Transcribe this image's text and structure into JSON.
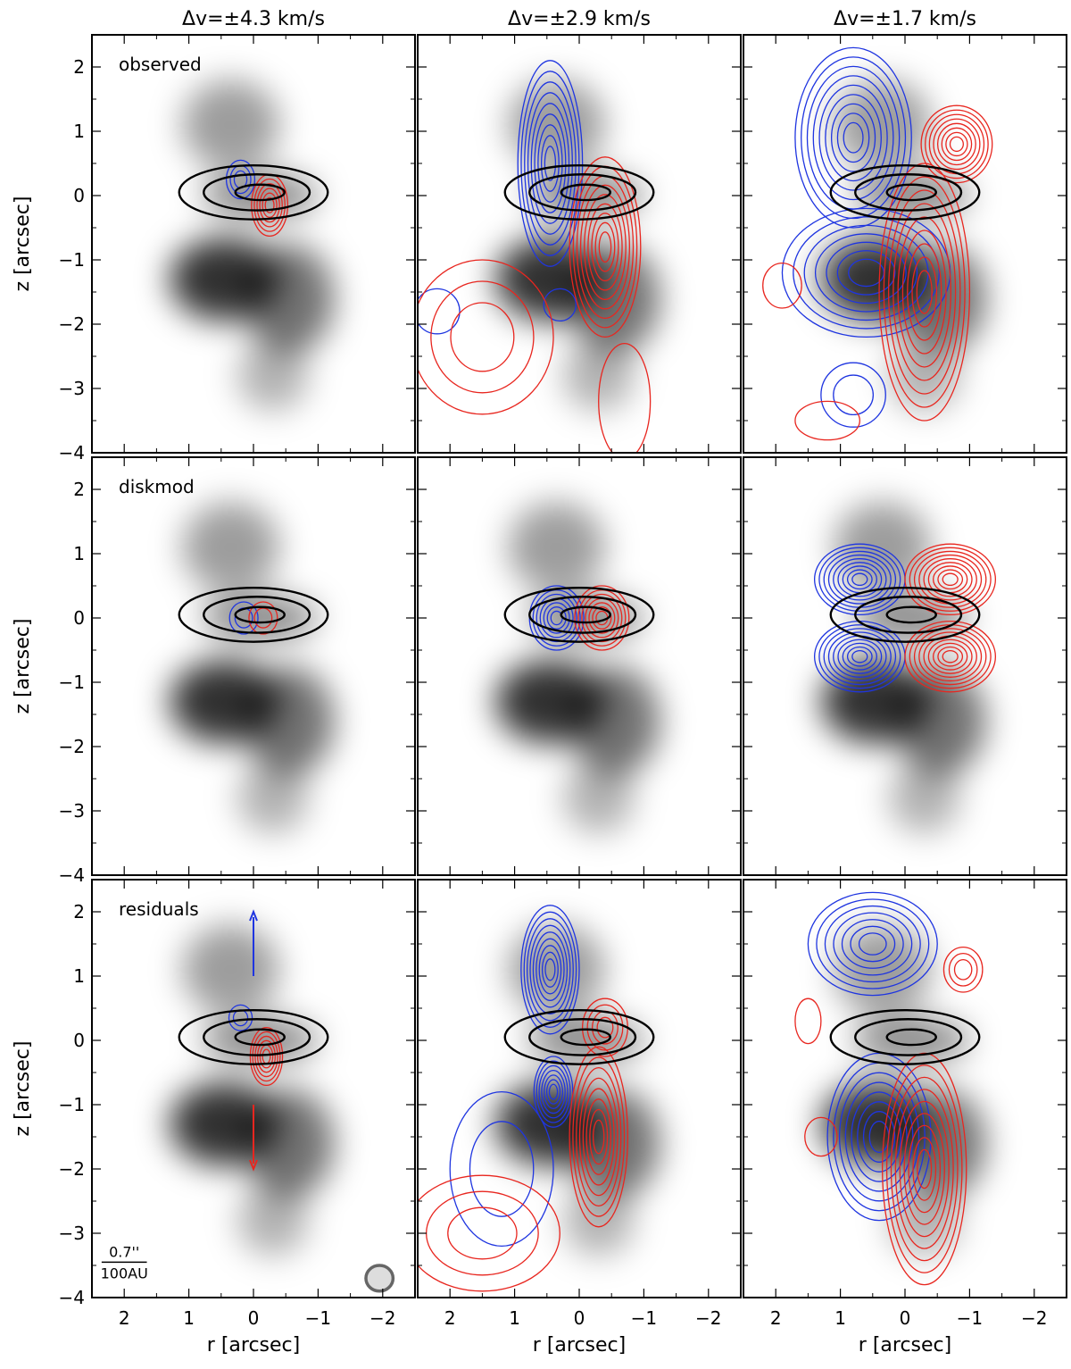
{
  "colors": {
    "blue": "#1f35e0",
    "red": "#e8261f",
    "black": "#000000",
    "beam": "#666666"
  },
  "chart_data": {
    "type": "contour-grid",
    "columns": [
      "Δv=±4.3 km/s",
      "Δv=±2.9 km/s",
      "Δv=±1.7 km/s"
    ],
    "rows": [
      "observed",
      "diskmod",
      "residuals"
    ],
    "xlabel": "r [arcsec]",
    "ylabel": "z [arcsec]",
    "xlim": [
      2.5,
      -2.5
    ],
    "ylim": [
      -4,
      2.5
    ],
    "xticks": [
      2,
      1,
      0,
      -1,
      -2
    ],
    "yticks": [
      2,
      1,
      0,
      -1,
      -2,
      -3,
      -4
    ],
    "xtick_labels": [
      "2",
      "1",
      "0",
      "−1",
      "−2"
    ],
    "ytick_labels": [
      "2",
      "1",
      "0",
      "−1",
      "−2",
      "−3",
      "−4"
    ],
    "background": {
      "blobs": [
        {
          "x": 0.35,
          "y": 1.1,
          "sx": 0.75,
          "sy": 0.7,
          "a": 0.45
        },
        {
          "x": -0.1,
          "y": 0.0,
          "sx": 0.9,
          "sy": 0.35,
          "a": 0.55
        },
        {
          "x": 0.45,
          "y": -1.3,
          "sx": 0.85,
          "sy": 0.65,
          "a": 0.95
        },
        {
          "x": -0.55,
          "y": -1.6,
          "sx": 0.7,
          "sy": 0.85,
          "a": 0.65
        },
        {
          "x": -0.3,
          "y": -2.8,
          "sx": 0.55,
          "sy": 0.55,
          "a": 0.35
        }
      ]
    },
    "continuum_contours": [
      {
        "cx": 0.0,
        "cy": 0.05,
        "rx": 1.15,
        "ry": 0.42
      },
      {
        "cx": -0.05,
        "cy": 0.05,
        "rx": 0.82,
        "ry": 0.28
      },
      {
        "cx": -0.1,
        "cy": 0.05,
        "rx": 0.38,
        "ry": 0.12
      }
    ],
    "line_contours": {
      "observed": [
        {
          "blue": [
            {
              "cx": 0.2,
              "cy": 0.25,
              "rx": 0.22,
              "ry": 0.3,
              "n": 3
            }
          ],
          "red": [
            {
              "cx": -0.25,
              "cy": -0.15,
              "rx": 0.28,
              "ry": 0.48,
              "n": 6
            }
          ]
        },
        {
          "blue": [
            {
              "cx": 0.45,
              "cy": 0.5,
              "rx": 0.5,
              "ry": 1.6,
              "n": 9
            },
            {
              "cx": 0.3,
              "cy": -1.7,
              "rx": 0.25,
              "ry": 0.25,
              "n": 1
            },
            {
              "cx": 2.2,
              "cy": -1.8,
              "rx": 0.35,
              "ry": 0.35,
              "n": 1
            }
          ],
          "red": [
            {
              "cx": -0.4,
              "cy": -0.8,
              "rx": 0.55,
              "ry": 1.4,
              "n": 9
            },
            {
              "cx": 1.5,
              "cy": -2.2,
              "rx": 1.1,
              "ry": 1.2,
              "n": 3
            },
            {
              "cx": -0.7,
              "cy": -3.2,
              "rx": 0.4,
              "ry": 0.9,
              "n": 1
            }
          ]
        },
        {
          "blue": [
            {
              "cx": 0.8,
              "cy": 0.9,
              "rx": 0.9,
              "ry": 1.4,
              "n": 9
            },
            {
              "cx": 0.6,
              "cy": -1.2,
              "rx": 1.3,
              "ry": 1.0,
              "n": 7
            },
            {
              "cx": 0.8,
              "cy": -3.1,
              "rx": 0.5,
              "ry": 0.5,
              "n": 2
            }
          ],
          "red": [
            {
              "cx": -0.8,
              "cy": 0.8,
              "rx": 0.55,
              "ry": 0.6,
              "n": 8
            },
            {
              "cx": -0.3,
              "cy": -1.5,
              "rx": 0.7,
              "ry": 2.0,
              "n": 9
            },
            {
              "cx": 1.9,
              "cy": -1.4,
              "rx": 0.3,
              "ry": 0.35,
              "n": 1
            },
            {
              "cx": 1.2,
              "cy": -3.5,
              "rx": 0.5,
              "ry": 0.3,
              "n": 1
            }
          ]
        }
      ],
      "diskmod": [
        {
          "blue": [
            {
              "cx": 0.15,
              "cy": 0.0,
              "rx": 0.22,
              "ry": 0.25,
              "n": 2
            }
          ],
          "red": [
            {
              "cx": -0.15,
              "cy": 0.0,
              "rx": 0.22,
              "ry": 0.25,
              "n": 2
            }
          ]
        },
        {
          "blue": [
            {
              "cx": 0.35,
              "cy": 0.0,
              "rx": 0.42,
              "ry": 0.5,
              "n": 7
            }
          ],
          "red": [
            {
              "cx": -0.35,
              "cy": 0.0,
              "rx": 0.42,
              "ry": 0.5,
              "n": 7
            }
          ]
        },
        {
          "blue": [
            {
              "cx": 0.7,
              "cy": 0.6,
              "rx": 0.7,
              "ry": 0.55,
              "n": 9
            },
            {
              "cx": 0.7,
              "cy": -0.6,
              "rx": 0.7,
              "ry": 0.55,
              "n": 9
            }
          ],
          "red": [
            {
              "cx": -0.7,
              "cy": 0.6,
              "rx": 0.7,
              "ry": 0.55,
              "n": 9
            },
            {
              "cx": -0.7,
              "cy": -0.6,
              "rx": 0.7,
              "ry": 0.55,
              "n": 9
            }
          ]
        }
      ],
      "residuals": [
        {
          "blue": [
            {
              "cx": 0.2,
              "cy": 0.35,
              "rx": 0.18,
              "ry": 0.2,
              "n": 2
            }
          ],
          "red": [
            {
              "cx": -0.2,
              "cy": -0.25,
              "rx": 0.25,
              "ry": 0.45,
              "n": 6
            }
          ]
        },
        {
          "blue": [
            {
              "cx": 0.45,
              "cy": 1.1,
              "rx": 0.45,
              "ry": 1.0,
              "n": 9
            },
            {
              "cx": 0.4,
              "cy": -0.8,
              "rx": 0.3,
              "ry": 0.55,
              "n": 7
            },
            {
              "cx": 1.2,
              "cy": -2.0,
              "rx": 0.8,
              "ry": 1.2,
              "n": 2
            }
          ],
          "red": [
            {
              "cx": -0.4,
              "cy": 0.2,
              "rx": 0.35,
              "ry": 0.45,
              "n": 4
            },
            {
              "cx": -0.3,
              "cy": -1.5,
              "rx": 0.45,
              "ry": 1.4,
              "n": 8
            },
            {
              "cx": 1.5,
              "cy": -3.0,
              "rx": 1.2,
              "ry": 0.9,
              "n": 3
            }
          ]
        },
        {
          "blue": [
            {
              "cx": 0.5,
              "cy": 1.5,
              "rx": 1.0,
              "ry": 0.8,
              "n": 7
            },
            {
              "cx": 0.4,
              "cy": -1.5,
              "rx": 0.8,
              "ry": 1.3,
              "n": 8
            }
          ],
          "red": [
            {
              "cx": -0.9,
              "cy": 1.1,
              "rx": 0.3,
              "ry": 0.35,
              "n": 3
            },
            {
              "cx": -0.3,
              "cy": -2.0,
              "rx": 0.65,
              "ry": 1.8,
              "n": 9
            },
            {
              "cx": 1.5,
              "cy": 0.3,
              "rx": 0.2,
              "ry": 0.35,
              "n": 1
            },
            {
              "cx": 1.3,
              "cy": -1.5,
              "rx": 0.25,
              "ry": 0.3,
              "n": 1
            }
          ]
        }
      ]
    },
    "arrows": [
      {
        "color": "blue",
        "x": 0,
        "from": 1.0,
        "to": 2.0
      },
      {
        "color": "red",
        "x": 0,
        "from": -1.0,
        "to": -2.0
      }
    ],
    "scale_bar": {
      "top": "0.7''",
      "bottom": "100AU",
      "length_arcsec": 0.7
    },
    "beam": {
      "x": -1.95,
      "y": -3.7,
      "major": 0.42,
      "minor": 0.38
    }
  }
}
